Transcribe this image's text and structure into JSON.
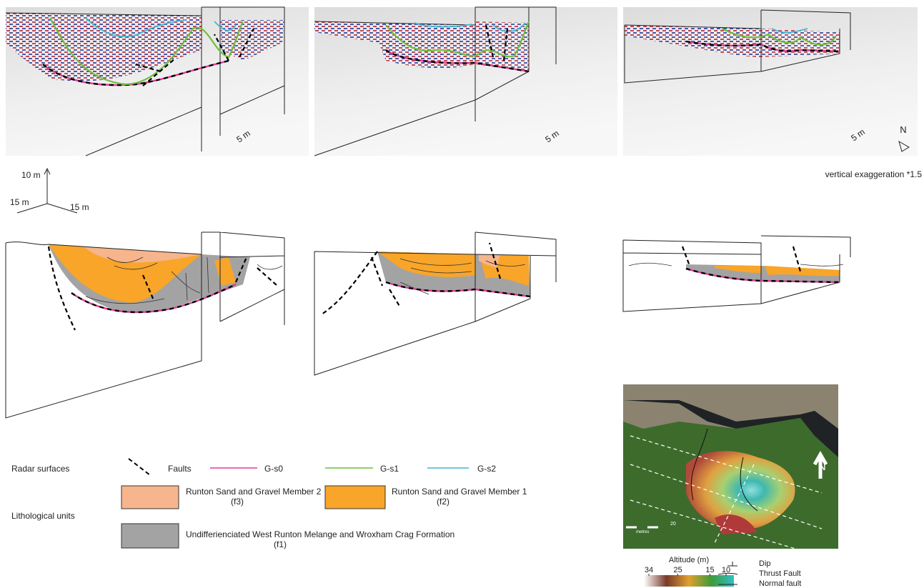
{
  "radar_panels": [
    {
      "scale_label": "5 m"
    },
    {
      "scale_label": "5 m"
    },
    {
      "scale_label": "5 m"
    }
  ],
  "north_label": "N",
  "vertical_exaggeration": "vertical exaggeration *1.5",
  "axes": {
    "vertical": "10 m",
    "left": "15 m",
    "right": "15 m"
  },
  "legend": {
    "radar_surfaces": {
      "title": "Radar surfaces",
      "items": [
        {
          "label": "Faults",
          "color": "#000000"
        },
        {
          "label": "G-s0",
          "color": "#e23a94"
        },
        {
          "label": "G-s1",
          "color": "#6cbf3a"
        },
        {
          "label": "G-s2",
          "color": "#3fb7d6"
        }
      ]
    },
    "lithological_units": {
      "title": "Lithological units",
      "items": [
        {
          "label": "Runton Sand and Gravel Member 2",
          "code": "(f3)",
          "color": "#f6b58c"
        },
        {
          "label": "Runton Sand and Gravel Member 1",
          "code": "(f2)",
          "color": "#f8a52a"
        },
        {
          "label": "Undifferienciated West Runton Melange and Wroxham Crag Formation",
          "code": "(f1)",
          "color": "#a3a3a3"
        }
      ]
    }
  },
  "map": {
    "north": "N",
    "scale_value": "20",
    "scale_unit": "metres",
    "altitude_title": "Altitude (m)",
    "altitude_ticks": [
      34,
      25,
      15,
      10
    ],
    "symbols": [
      "Dip",
      "Thrust Fault",
      "Normal fault"
    ]
  }
}
